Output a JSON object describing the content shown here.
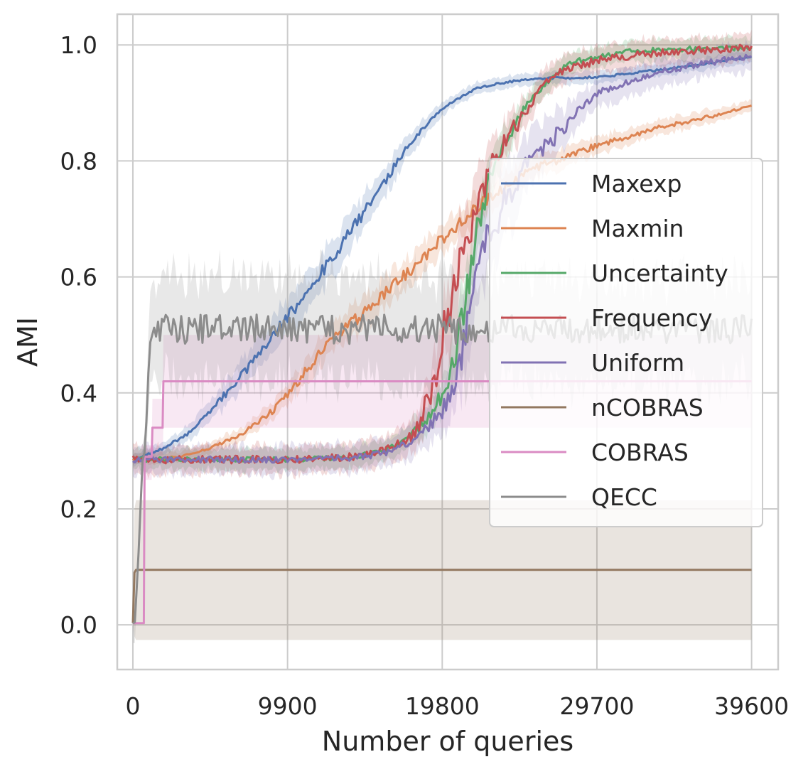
{
  "chart_data": {
    "type": "line",
    "title": "",
    "xlabel": "Number of queries",
    "ylabel": "AMI",
    "xlim": [
      -1000,
      41300
    ],
    "ylim": [
      -0.077,
      1.053
    ],
    "xticks": [
      0,
      9900,
      19800,
      29700,
      39600
    ],
    "xtick_labels": [
      "0",
      "9900",
      "19800",
      "29700",
      "39600"
    ],
    "yticks": [
      0.0,
      0.2,
      0.4,
      0.6,
      0.8,
      1.0
    ],
    "ytick_labels": [
      "0.0",
      "0.2",
      "0.4",
      "0.6",
      "0.8",
      "1.0"
    ],
    "grid": true,
    "legend_position": "center-right",
    "series": [
      {
        "name": "Maxexp",
        "color": "#4c72b0",
        "noise": 0.006,
        "band": 0.015,
        "seed": 1,
        "x": [
          0,
          500,
          2000,
          3500,
          5000,
          7000,
          9000,
          11000,
          13000,
          14000,
          15000,
          16000,
          17000,
          18000,
          19000,
          20000,
          21000,
          22000,
          23000,
          24000,
          25000,
          26000,
          27000,
          28000,
          30000,
          33000,
          36000,
          39600
        ],
        "y": [
          0.285,
          0.29,
          0.305,
          0.33,
          0.37,
          0.43,
          0.5,
          0.57,
          0.64,
          0.68,
          0.72,
          0.76,
          0.8,
          0.84,
          0.87,
          0.895,
          0.91,
          0.925,
          0.932,
          0.936,
          0.94,
          0.942,
          0.943,
          0.943,
          0.945,
          0.955,
          0.965,
          0.98
        ]
      },
      {
        "name": "Maxmin",
        "color": "#dd8452",
        "noise": 0.006,
        "band": 0.012,
        "seed": 2,
        "x": [
          0,
          2000,
          3000,
          5000,
          7000,
          9000,
          10000,
          12000,
          14000,
          16000,
          18000,
          20000,
          22000,
          24000,
          26000,
          28000,
          30000,
          32000,
          34000,
          36000,
          39600
        ],
        "y": [
          0.285,
          0.287,
          0.29,
          0.305,
          0.33,
          0.37,
          0.4,
          0.47,
          0.52,
          0.57,
          0.62,
          0.67,
          0.72,
          0.76,
          0.79,
          0.81,
          0.83,
          0.845,
          0.86,
          0.87,
          0.895
        ]
      },
      {
        "name": "Uncertainty",
        "color": "#55a868",
        "noise": 0.015,
        "band": 0.02,
        "seed": 3,
        "x": [
          0,
          10000,
          14000,
          16000,
          17000,
          18000,
          19000,
          19800,
          20500,
          21000,
          21500,
          22000,
          23000,
          24000,
          25000,
          26000,
          27000,
          28000,
          30000,
          32000,
          35000,
          39600
        ],
        "y": [
          0.285,
          0.285,
          0.288,
          0.3,
          0.31,
          0.33,
          0.36,
          0.4,
          0.45,
          0.52,
          0.59,
          0.68,
          0.78,
          0.84,
          0.89,
          0.92,
          0.95,
          0.97,
          0.98,
          0.99,
          0.993,
          0.995
        ]
      },
      {
        "name": "Frequency",
        "color": "#c44e52",
        "noise": 0.022,
        "band": 0.025,
        "seed": 4,
        "x": [
          0,
          10000,
          14000,
          16000,
          17000,
          18000,
          18800,
          19500,
          20000,
          20500,
          21000,
          21500,
          22000,
          22500,
          23000,
          24000,
          25000,
          26000,
          27000,
          28000,
          30000,
          33000,
          36000,
          39600
        ],
        "y": [
          0.285,
          0.285,
          0.29,
          0.3,
          0.31,
          0.33,
          0.38,
          0.45,
          0.52,
          0.58,
          0.63,
          0.66,
          0.7,
          0.75,
          0.79,
          0.84,
          0.88,
          0.92,
          0.95,
          0.96,
          0.975,
          0.985,
          0.99,
          0.995
        ]
      },
      {
        "name": "Uniform",
        "color": "#8172b3",
        "noise": 0.018,
        "band": 0.03,
        "seed": 5,
        "x": [
          0,
          10000,
          14000,
          16000,
          17000,
          18000,
          19000,
          20000,
          21000,
          21500,
          22000,
          23000,
          24000,
          25000,
          26000,
          27000,
          28000,
          29000,
          30000,
          32000,
          34000,
          36000,
          38000,
          39600
        ],
        "y": [
          0.285,
          0.285,
          0.288,
          0.295,
          0.305,
          0.32,
          0.34,
          0.38,
          0.45,
          0.55,
          0.61,
          0.68,
          0.74,
          0.78,
          0.82,
          0.84,
          0.87,
          0.9,
          0.92,
          0.94,
          0.955,
          0.965,
          0.975,
          0.98
        ]
      },
      {
        "name": "nCOBRAS",
        "color": "#937860",
        "noise": 0,
        "band": 0,
        "seed": 6,
        "x": [
          0,
          100,
          200,
          39600
        ],
        "y": [
          0.003,
          0.09,
          0.095,
          0.095
        ],
        "band_lower": [
          0.003,
          -0.02,
          -0.026,
          -0.026
        ],
        "band_upper": [
          0.003,
          0.2,
          0.215,
          0.215
        ]
      },
      {
        "name": "COBRAS",
        "color": "#da8bc3",
        "noise": 0,
        "band": 0,
        "seed": 7,
        "x": [
          0,
          700,
          750,
          1200,
          1250,
          1900,
          1950,
          39600
        ],
        "y": [
          0.003,
          0.003,
          0.29,
          0.29,
          0.34,
          0.34,
          0.42,
          0.42
        ],
        "band_lower": [
          0.003,
          0.003,
          0.25,
          0.25,
          0.285,
          0.285,
          0.34,
          0.34
        ],
        "band_upper": [
          0.003,
          0.003,
          0.31,
          0.31,
          0.39,
          0.39,
          0.5,
          0.5
        ]
      },
      {
        "name": "QECC",
        "color": "#8c8c8c",
        "noise": 0.014,
        "band": 0.045,
        "seed": 8,
        "x": [
          0,
          150,
          300,
          400,
          600,
          800,
          1000,
          1300,
          39600
        ],
        "y": [
          0.003,
          0.003,
          0.1,
          0.14,
          0.28,
          0.3,
          0.45,
          0.51,
          0.51
        ]
      }
    ]
  }
}
